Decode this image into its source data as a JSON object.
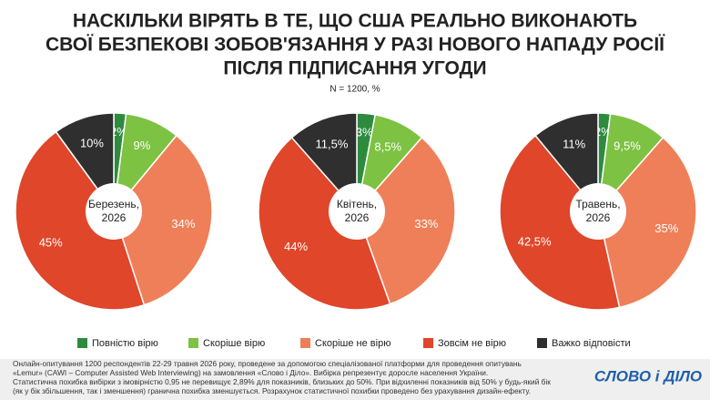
{
  "title": [
    "НАСКІЛЬКИ ВІРЯТЬ В ТЕ, ЩО США РЕАЛЬНО ВИКОНАЮТЬ",
    "СВОЇ БЕЗПЕКОВІ ЗОБОВ'ЯЗАННЯ У РАЗІ НОВОГО НАПАДУ РОСІЇ",
    "ПІСЛЯ ПІДПИСАННЯ УГОДИ"
  ],
  "subtitle": "N = 1200, %",
  "legend": [
    {
      "name": "Повністю вірю",
      "color": "#2e8b3e"
    },
    {
      "name": "Скоріше вірю",
      "color": "#7dc242"
    },
    {
      "name": "Скоріше не вірю",
      "color": "#ef7f58"
    },
    {
      "name": "Зовсім не вірю",
      "color": "#e0462a"
    },
    {
      "name": "Важко відповісти",
      "color": "#2f2f2f"
    }
  ],
  "chart_data": [
    {
      "type": "pie",
      "center_label": [
        "Березень,",
        "2026"
      ],
      "values": [
        2,
        9,
        34,
        45,
        10
      ],
      "value_labels": [
        "2%",
        "9%",
        "34%",
        "45%",
        "10%"
      ]
    },
    {
      "type": "pie",
      "center_label": [
        "Квітень,",
        "2026"
      ],
      "values": [
        3,
        8.5,
        33,
        44,
        11.5
      ],
      "value_labels": [
        "3%",
        "8,5%",
        "33%",
        "44%",
        "11,5%"
      ]
    },
    {
      "type": "pie",
      "center_label": [
        "Травень,",
        "2026"
      ],
      "values": [
        2,
        9.5,
        35,
        42.5,
        11
      ],
      "value_labels": [
        "2%",
        "9,5%",
        "35%",
        "42,5%",
        "11%"
      ]
    }
  ],
  "footnote": [
    "Онлайн-опитування 1200 респондентів 22-29 травня 2026 року, проведене за допомогою спеціалізованої платформи для проведення опитувань",
    "«Lemur» (CAWI – Computer Assisted Web Interviewing) на замовлення «Слово і Діло». Вибірка репрезентує доросле населення України.",
    "Статистична похибка вибірки з імовірністю 0,95 не перевищує 2,89% для показників, близьких до 50%. При відхиленні показників від 50% у будь-який бік",
    "(як у бік збільшення, так і зменшення) гранична похибка зменшується. Розрахунок статистичної похибки проведено без урахування дизайн-ефекту."
  ],
  "logo": "СЛОВО і ДІЛО"
}
